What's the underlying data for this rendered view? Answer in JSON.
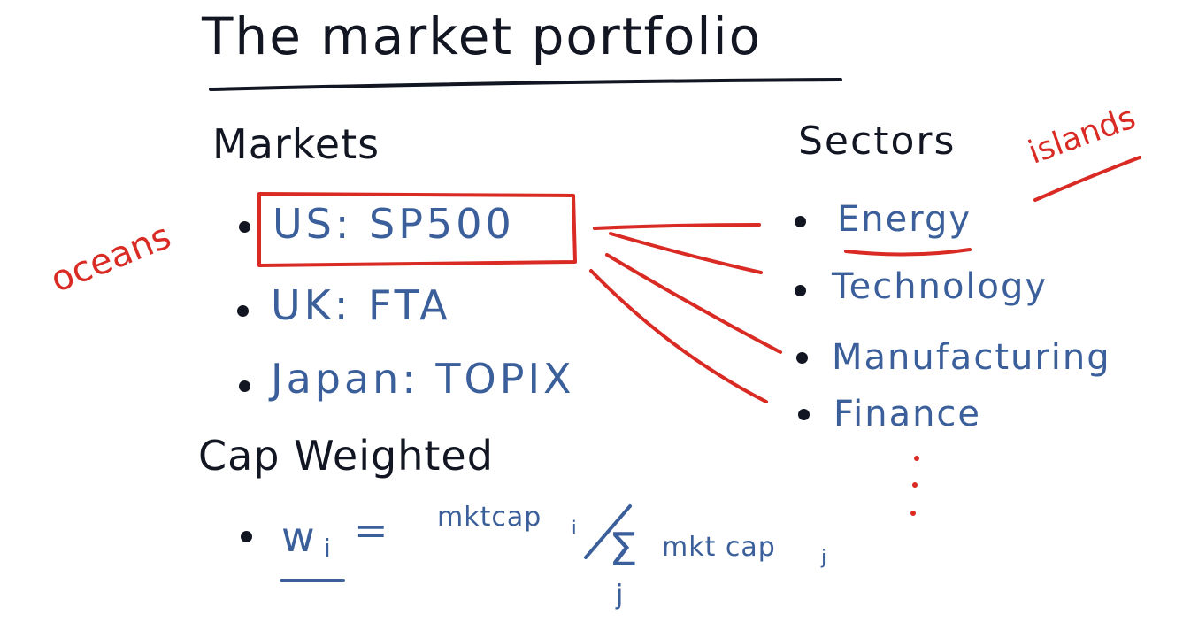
{
  "title": "The market portfolio",
  "markets": {
    "heading": "Markets",
    "items": [
      "US: SP500",
      "UK: FTA",
      "Japan: TOPIX"
    ]
  },
  "sectors": {
    "heading": "Sectors",
    "items": [
      "Energy",
      "Technology",
      "Manufacturing",
      "Finance"
    ]
  },
  "annotations": {
    "oceans": "oceans",
    "islands": "islands"
  },
  "cap_weighted": {
    "heading": "Cap Weighted",
    "weight_symbol": "w",
    "weight_subscript": "i",
    "equals": "=",
    "numerator": "mktcap",
    "numerator_subscript": "i",
    "sum_symbol": "Σ",
    "sum_index": "j",
    "denominator": "mkt cap",
    "denominator_subscript": "j"
  },
  "colors": {
    "black_ink": "#121622",
    "blue_ink": "#3b5f9a",
    "red_ink": "#d92a24"
  }
}
